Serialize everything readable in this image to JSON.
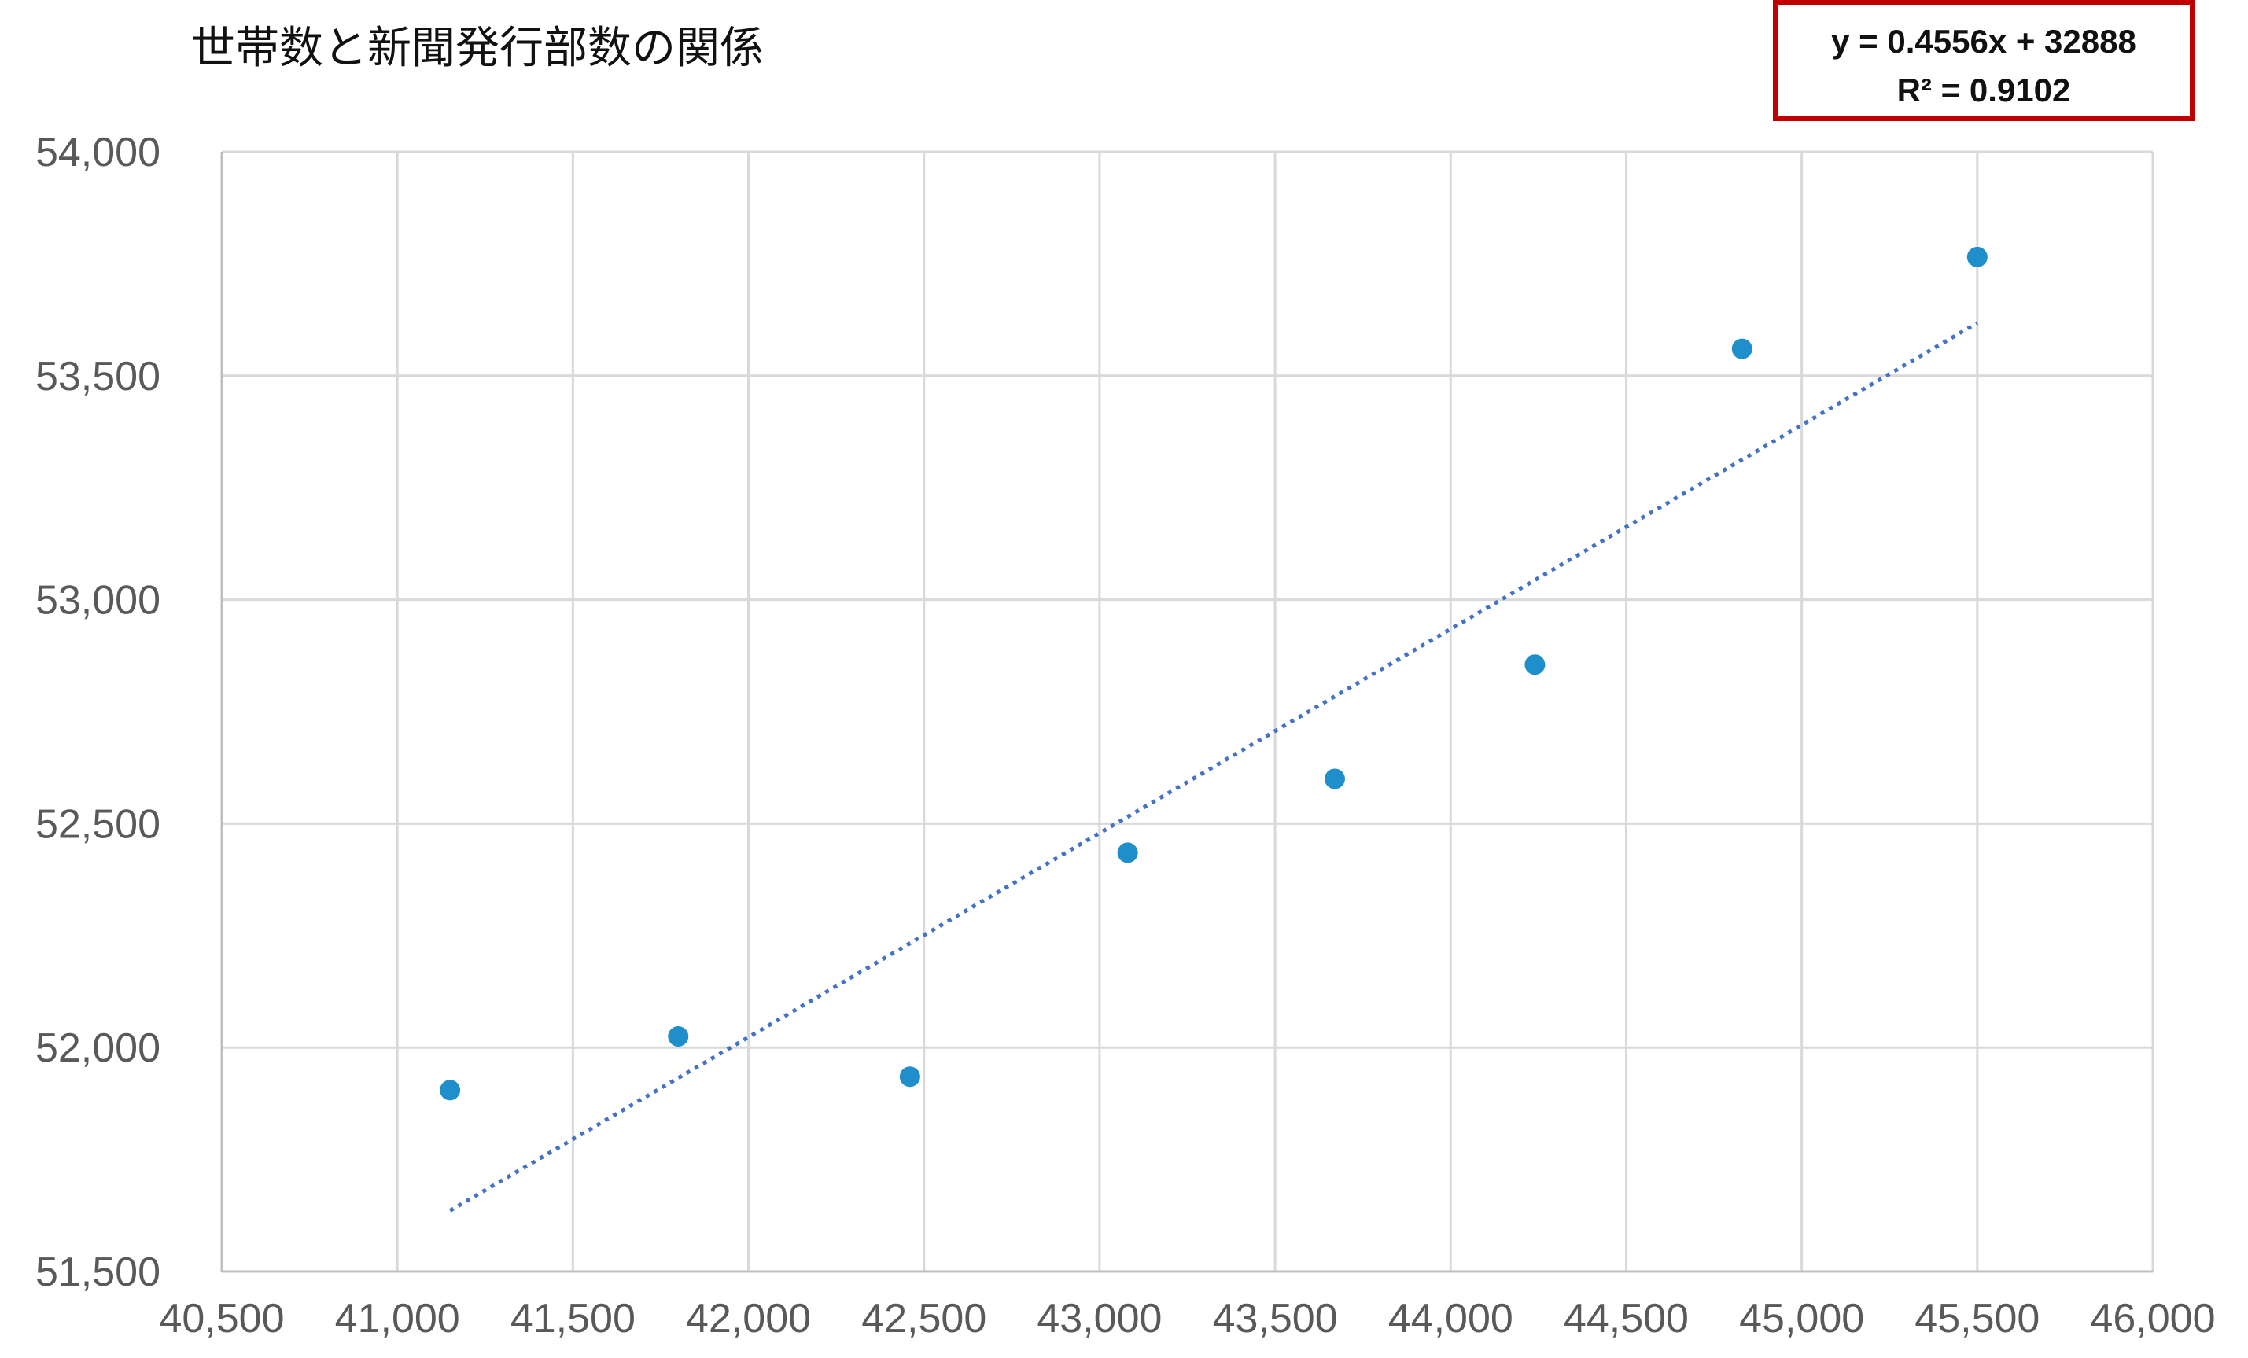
{
  "chart_data": {
    "type": "scatter",
    "title": "世帯数と新聞発行部数の関係",
    "xlabel": "",
    "ylabel": "",
    "xlim": [
      40500,
      46000
    ],
    "ylim": [
      51500,
      54000
    ],
    "x_ticks": [
      40500,
      41000,
      41500,
      42000,
      42500,
      43000,
      43500,
      44000,
      44500,
      45000,
      45500,
      46000
    ],
    "y_ticks": [
      51500,
      52000,
      52500,
      53000,
      53500,
      54000
    ],
    "x_tick_labels": [
      "40,500",
      "41,000",
      "41,500",
      "42,000",
      "42,500",
      "43,000",
      "43,500",
      "44,000",
      "44,500",
      "45,000",
      "45,500",
      "46,000"
    ],
    "y_tick_labels": [
      "51,500",
      "52,000",
      "52,500",
      "53,000",
      "53,500",
      "54,000"
    ],
    "grid": true,
    "series": [
      {
        "color": "#1f8fcb",
        "points": [
          {
            "x": 41150,
            "y": 51905
          },
          {
            "x": 41800,
            "y": 52025
          },
          {
            "x": 42460,
            "y": 51935
          },
          {
            "x": 43080,
            "y": 52435
          },
          {
            "x": 43670,
            "y": 52600
          },
          {
            "x": 44240,
            "y": 52855
          },
          {
            "x": 44830,
            "y": 53560
          },
          {
            "x": 45500,
            "y": 53765
          }
        ]
      }
    ],
    "trendline": {
      "type": "linear",
      "slope": 0.4556,
      "intercept": 32888,
      "x_range": [
        41150,
        45500
      ],
      "color": "#4472c4",
      "style": "dotted",
      "equation": "y = 0.4556x + 32888",
      "r_squared": "R² = 0.9102"
    }
  }
}
